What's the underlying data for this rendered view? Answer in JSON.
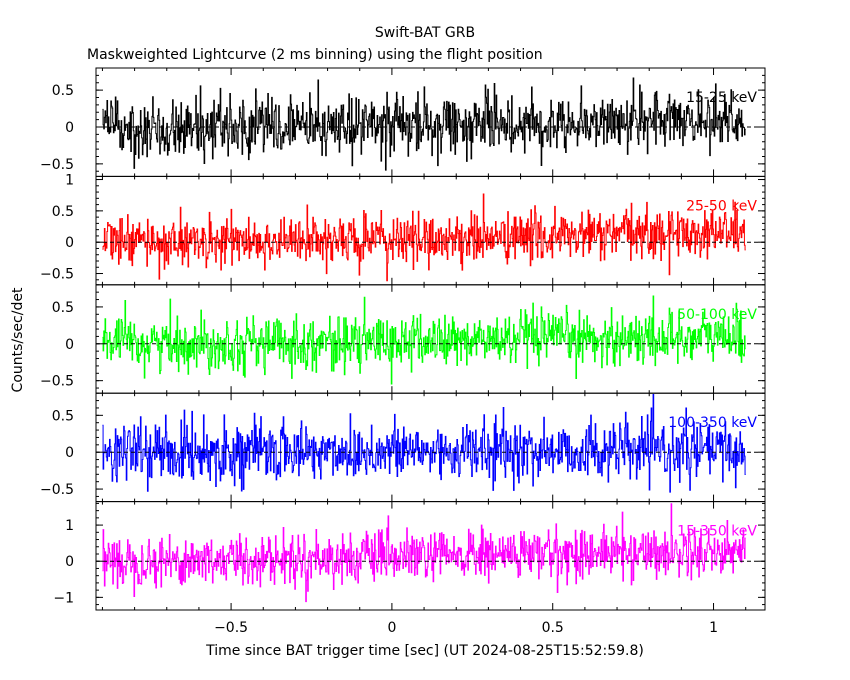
{
  "title": "Swift-BAT GRB",
  "subtitle": "Maskweighted Lightcurve (2 ms binning) using the flight position",
  "chart_data": {
    "type": "line",
    "xlabel": "Time since BAT trigger time [sec] (UT 2024-08-25T15:52:59.8)",
    "ylabel": "Counts/sec/det",
    "xlim": [
      -0.92,
      1.16
    ],
    "x_ticks": [
      -0.5,
      0,
      0.5,
      1
    ],
    "x_tick_labels": [
      "−0.5",
      "0",
      "0.5",
      "1"
    ],
    "bin_width_sec": 0.002,
    "x_data_range": [
      -0.9,
      1.1
    ],
    "grid": false,
    "zero_line": true,
    "panels": [
      {
        "name": "15-25 keV",
        "color": "#000000",
        "ylim": [
          -0.67,
          0.8
        ],
        "y_ticks": [
          -0.5,
          0,
          0.5
        ],
        "y_tick_labels": [
          "−0.5",
          "0",
          "0.5"
        ],
        "sigma": 0.2,
        "trend": [
          [
            -0.9,
            0.0
          ],
          [
            0.0,
            0.02
          ],
          [
            0.4,
            0.05
          ],
          [
            1.1,
            0.12
          ]
        ]
      },
      {
        "name": "25-50 keV",
        "color": "#ff0000",
        "ylim": [
          -0.68,
          1.05
        ],
        "y_ticks": [
          -0.5,
          0,
          0.5,
          1
        ],
        "y_tick_labels": [
          "−0.5",
          "0",
          "0.5",
          "1"
        ],
        "sigma": 0.2,
        "trend": [
          [
            -0.9,
            0.0
          ],
          [
            0.0,
            0.03
          ],
          [
            0.4,
            0.08
          ],
          [
            1.1,
            0.18
          ]
        ]
      },
      {
        "name": "50-100 keV",
        "color": "#00ff00",
        "ylim": [
          -0.67,
          0.8
        ],
        "y_ticks": [
          -0.5,
          0,
          0.5
        ],
        "y_tick_labels": [
          "−0.5",
          "0",
          "0.5"
        ],
        "sigma": 0.18,
        "trend": [
          [
            -0.9,
            0.0
          ],
          [
            0.0,
            0.02
          ],
          [
            0.4,
            0.06
          ],
          [
            1.1,
            0.1
          ]
        ]
      },
      {
        "name": "100-350 keV",
        "color": "#0000ff",
        "ylim": [
          -0.67,
          0.8
        ],
        "y_ticks": [
          -0.5,
          0,
          0.5
        ],
        "y_tick_labels": [
          "−0.5",
          "0",
          "0.5"
        ],
        "sigma": 0.2,
        "trend": [
          [
            -0.9,
            0.0
          ],
          [
            1.1,
            0.02
          ]
        ]
      },
      {
        "name": "15-350 keV",
        "color": "#ff00ff",
        "ylim": [
          -1.35,
          1.65
        ],
        "y_ticks": [
          -1,
          0,
          1
        ],
        "y_tick_labels": [
          "−1",
          "0",
          "1"
        ],
        "sigma": 0.35,
        "trend": [
          [
            -0.9,
            0.0
          ],
          [
            0.0,
            0.1
          ],
          [
            0.4,
            0.2
          ],
          [
            1.1,
            0.3
          ]
        ]
      }
    ]
  }
}
